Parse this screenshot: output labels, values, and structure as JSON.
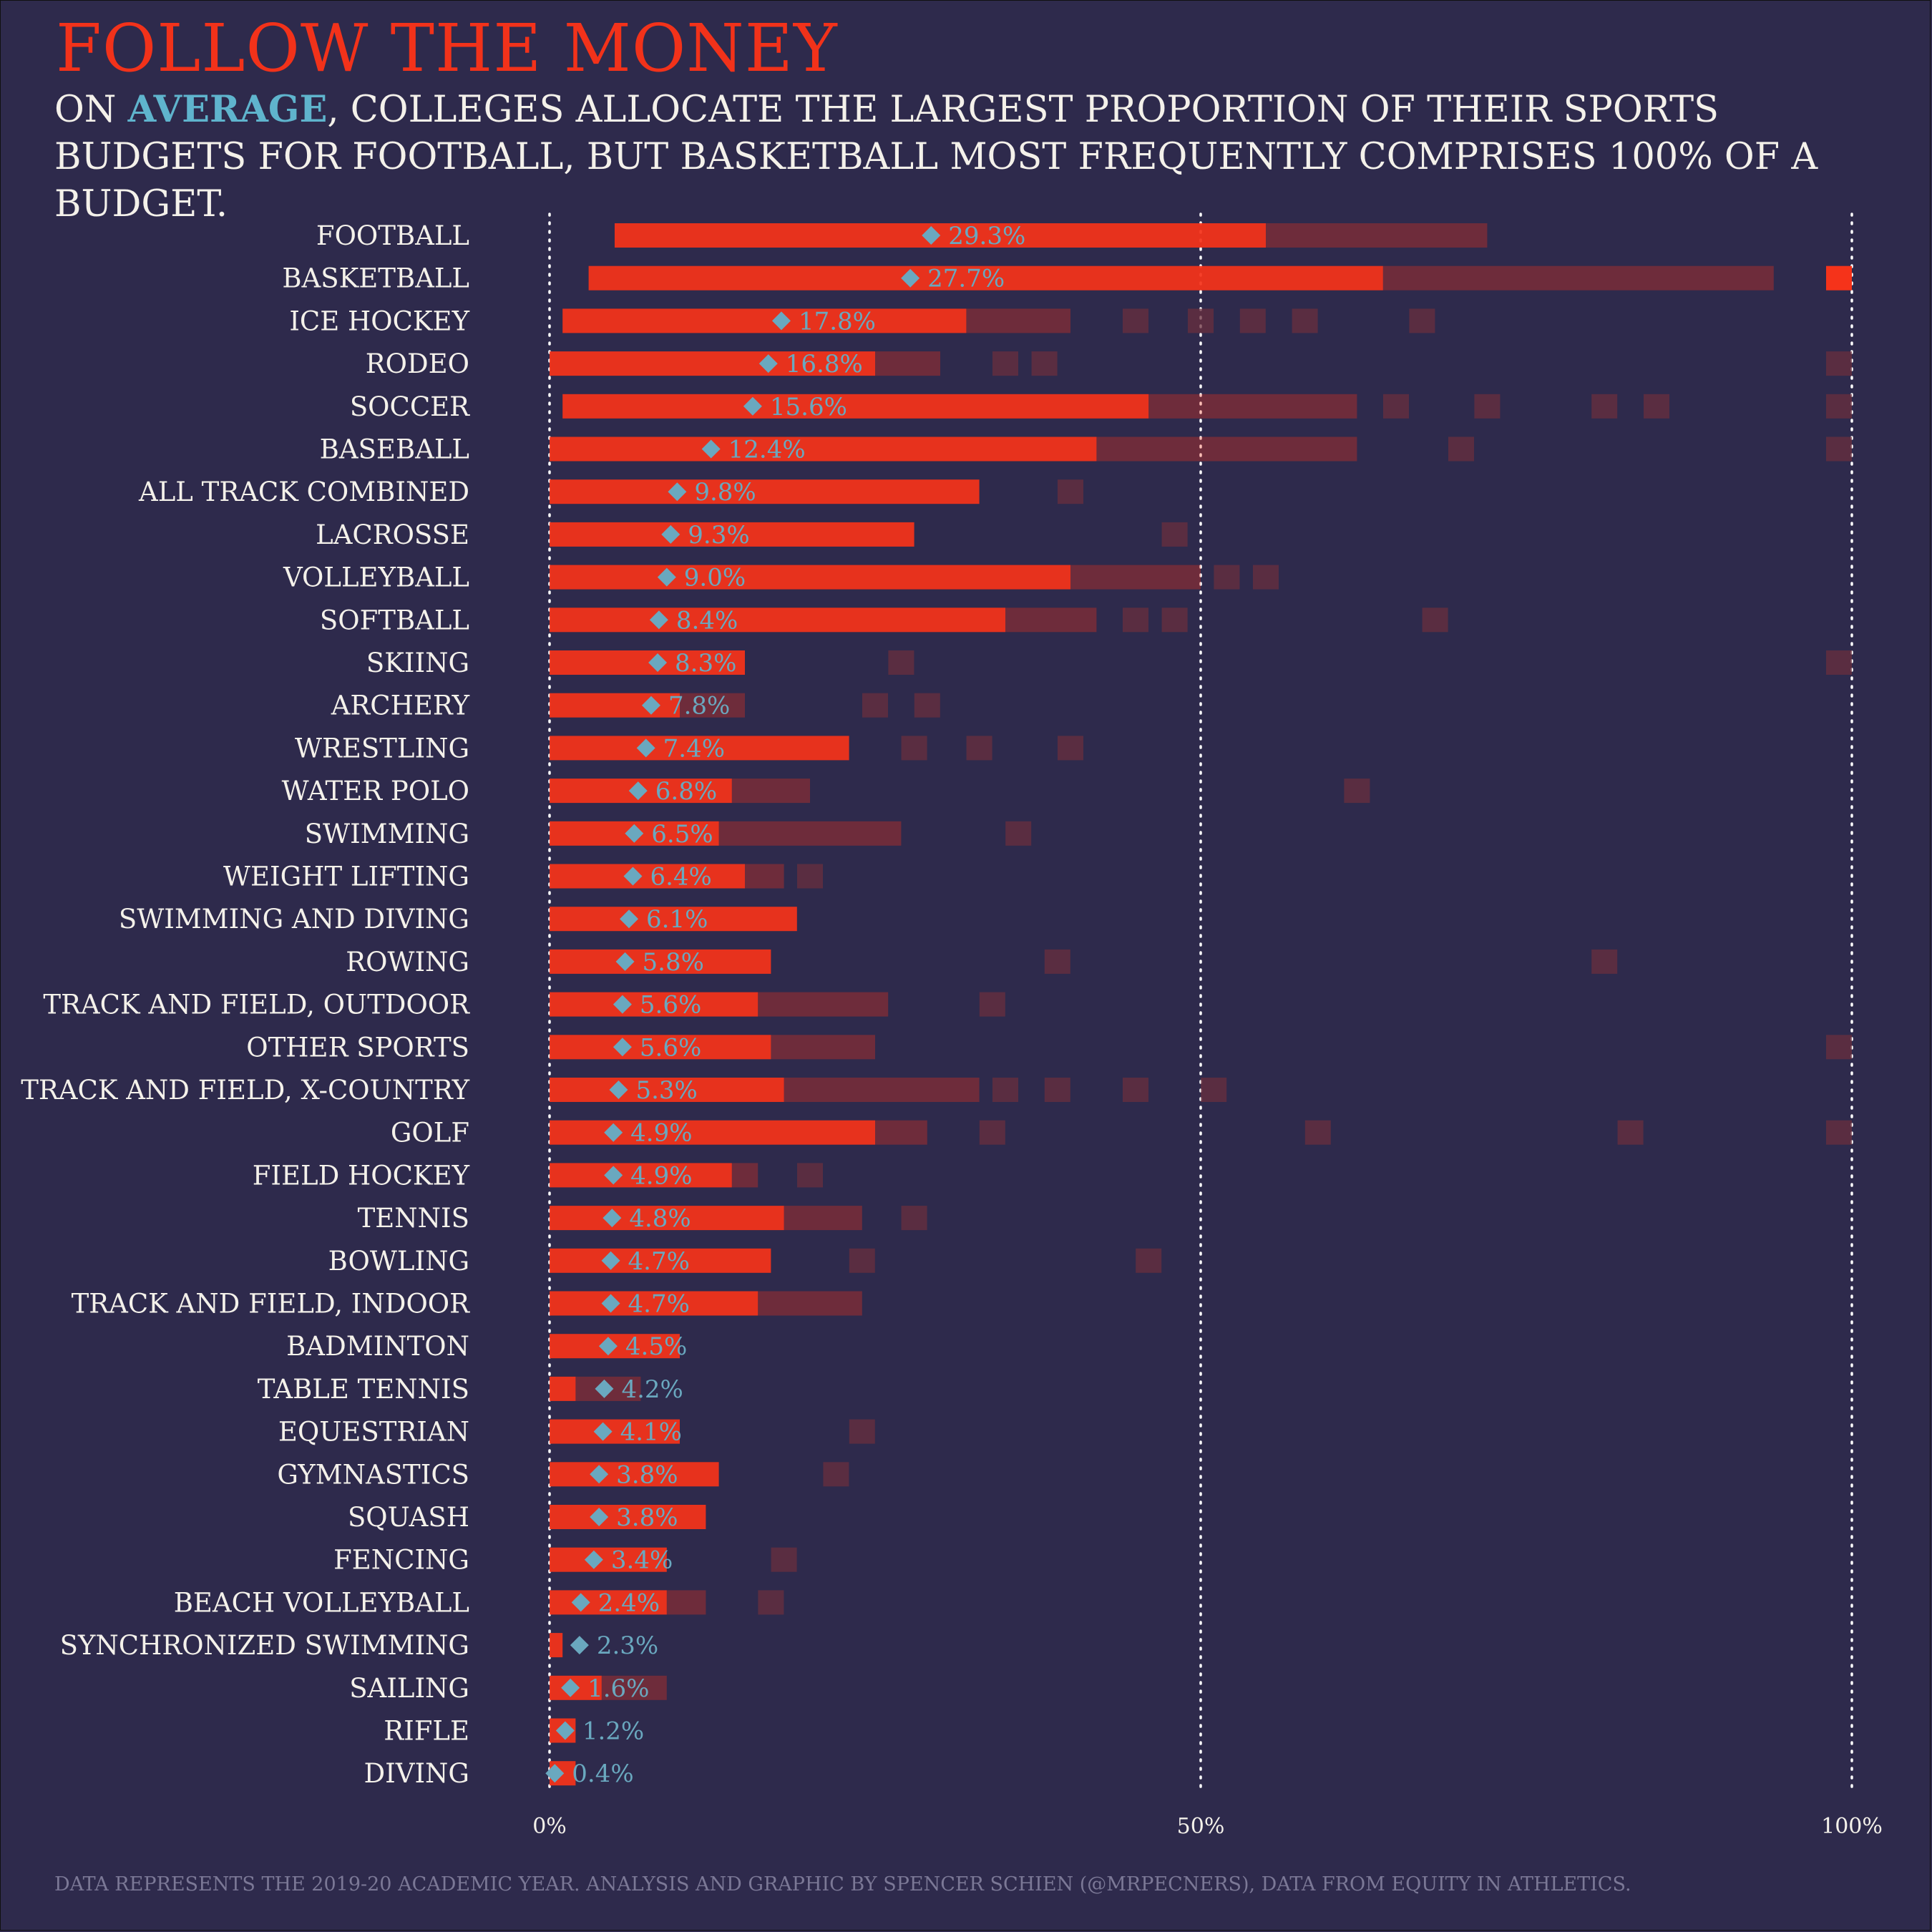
{
  "title": "Follow the Money",
  "subtitle": {
    "prefix": "On ",
    "highlight": "average",
    "rest": ", colleges allocate the largest proportion of their sports budgets for football, but basketball most frequently comprises 100% of a budget."
  },
  "footer": "Data represents the 2019-20 academic year. Analysis and graphic by Spencer Schien (@MrPecners), data from Equity in Athletics.",
  "colors": {
    "background": "#2e2a4c",
    "title": "#f2321a",
    "bar": "#f5331a",
    "faint_bar": "#6a2f3e",
    "average_marker": "#6aa8bf",
    "highlight": "#5fb4cd",
    "text": "#f4f1ea",
    "gridline": "#ffffff"
  },
  "chart_data": {
    "type": "bar",
    "encoding": "per-sport strip of individual college budget shares (red), with the average share shown as a diamond marker",
    "x_axis": {
      "ticks": [
        "0%",
        "50%",
        "100%"
      ],
      "range": [
        0,
        100
      ],
      "unit": "% of sports budget",
      "gridlines": [
        0,
        50,
        100
      ],
      "gridline_style": "dotted"
    },
    "categories": [
      "Football",
      "Basketball",
      "Ice Hockey",
      "Rodeo",
      "Soccer",
      "Baseball",
      "All Track Combined",
      "Lacrosse",
      "Volleyball",
      "Softball",
      "Skiing",
      "Archery",
      "Wrestling",
      "Water Polo",
      "Swimming",
      "Weight Lifting",
      "Swimming and Diving",
      "Rowing",
      "Track and Field, Outdoor",
      "Other Sports",
      "Track and Field, X-Country",
      "Golf",
      "Field Hockey",
      "Tennis",
      "Bowling",
      "Track and Field, Indoor",
      "Badminton",
      "Table Tennis",
      "Equestrian",
      "Gymnastics",
      "Squash",
      "Fencing",
      "Beach Volleyball",
      "Synchronized Swimming",
      "Sailing",
      "Rifle",
      "Diving"
    ],
    "average_values": [
      29.3,
      27.7,
      17.8,
      16.8,
      15.6,
      12.4,
      9.8,
      9.3,
      9.0,
      8.4,
      8.3,
      7.8,
      7.4,
      6.8,
      6.5,
      6.4,
      6.1,
      5.8,
      5.6,
      5.6,
      5.3,
      4.9,
      4.9,
      4.8,
      4.7,
      4.7,
      4.5,
      4.2,
      4.1,
      3.8,
      3.8,
      3.4,
      2.4,
      2.3,
      1.6,
      1.2,
      0.4
    ],
    "average_labels": [
      "29.3%",
      "27.7%",
      "17.8%",
      "16.8%",
      "15.6%",
      "12.4%",
      "9.8%",
      "9.3%",
      "9.0%",
      "8.4%",
      "8.3%",
      "7.8%",
      "7.4%",
      "6.8%",
      "6.5%",
      "6.4%",
      "6.1%",
      "5.8%",
      "5.6%",
      "5.6%",
      "5.3%",
      "4.9%",
      "4.9%",
      "4.8%",
      "4.7%",
      "4.7%",
      "4.5%",
      "4.2%",
      "4.1%",
      "3.8%",
      "3.8%",
      "3.4%",
      "2.4%",
      "2.3%",
      "1.6%",
      "1.2%",
      "0.4%"
    ],
    "distribution": [
      {
        "dense_range": [
          5,
          55
        ],
        "sparse_range": [
          55,
          72
        ],
        "outliers": []
      },
      {
        "dense_range": [
          3,
          64
        ],
        "sparse_range": [
          64,
          94
        ],
        "outliers": [
          100
        ]
      },
      {
        "dense_range": [
          1,
          32
        ],
        "sparse_range": [
          32,
          40
        ],
        "outliers": [
          45,
          50,
          54,
          58,
          67
        ]
      },
      {
        "dense_range": [
          0,
          25
        ],
        "sparse_range": [
          25,
          30
        ],
        "outliers": [
          35,
          38,
          100
        ]
      },
      {
        "dense_range": [
          1,
          46
        ],
        "sparse_range": [
          46,
          62
        ],
        "outliers": [
          65,
          72,
          81,
          85,
          100
        ]
      },
      {
        "dense_range": [
          0,
          42
        ],
        "sparse_range": [
          42,
          62
        ],
        "outliers": [
          70,
          100
        ]
      },
      {
        "dense_range": [
          0,
          33
        ],
        "sparse_range": [
          33,
          33
        ],
        "outliers": [
          40
        ]
      },
      {
        "dense_range": [
          0,
          28
        ],
        "sparse_range": [
          28,
          28
        ],
        "outliers": [
          48
        ]
      },
      {
        "dense_range": [
          0,
          40
        ],
        "sparse_range": [
          40,
          50
        ],
        "outliers": [
          52,
          55
        ]
      },
      {
        "dense_range": [
          0,
          35
        ],
        "sparse_range": [
          35,
          42
        ],
        "outliers": [
          45,
          48,
          68
        ]
      },
      {
        "dense_range": [
          0,
          15
        ],
        "sparse_range": [
          15,
          15
        ],
        "outliers": [
          27,
          100
        ]
      },
      {
        "dense_range": [
          0,
          10
        ],
        "sparse_range": [
          10,
          15
        ],
        "outliers": [
          25,
          29
        ]
      },
      {
        "dense_range": [
          0,
          23
        ],
        "sparse_range": [
          23,
          23
        ],
        "outliers": [
          28,
          33,
          40
        ]
      },
      {
        "dense_range": [
          0,
          14
        ],
        "sparse_range": [
          14,
          20
        ],
        "outliers": [
          62
        ]
      },
      {
        "dense_range": [
          0,
          13
        ],
        "sparse_range": [
          13,
          27
        ],
        "outliers": [
          36
        ]
      },
      {
        "dense_range": [
          0,
          15
        ],
        "sparse_range": [
          15,
          18
        ],
        "outliers": [
          20
        ]
      },
      {
        "dense_range": [
          0,
          19
        ],
        "sparse_range": [
          19,
          19
        ],
        "outliers": []
      },
      {
        "dense_range": [
          0,
          17
        ],
        "sparse_range": [
          17,
          17
        ],
        "outliers": [
          39,
          81
        ]
      },
      {
        "dense_range": [
          0,
          16
        ],
        "sparse_range": [
          16,
          26
        ],
        "outliers": [
          34
        ]
      },
      {
        "dense_range": [
          0,
          17
        ],
        "sparse_range": [
          17,
          25
        ],
        "outliers": [
          100
        ]
      },
      {
        "dense_range": [
          0,
          18
        ],
        "sparse_range": [
          18,
          33
        ],
        "outliers": [
          35,
          39,
          45,
          51
        ]
      },
      {
        "dense_range": [
          0,
          25
        ],
        "sparse_range": [
          25,
          29
        ],
        "outliers": [
          34,
          59,
          83,
          100
        ]
      },
      {
        "dense_range": [
          0,
          14
        ],
        "sparse_range": [
          14,
          16
        ],
        "outliers": [
          20
        ]
      },
      {
        "dense_range": [
          0,
          18
        ],
        "sparse_range": [
          18,
          24
        ],
        "outliers": [
          28
        ]
      },
      {
        "dense_range": [
          0,
          17
        ],
        "sparse_range": [
          17,
          17
        ],
        "outliers": [
          24,
          46
        ]
      },
      {
        "dense_range": [
          0,
          16
        ],
        "sparse_range": [
          16,
          24
        ],
        "outliers": []
      },
      {
        "dense_range": [
          0,
          10
        ],
        "sparse_range": [
          10,
          10
        ],
        "outliers": []
      },
      {
        "dense_range": [
          0,
          2
        ],
        "sparse_range": [
          2,
          7
        ],
        "outliers": []
      },
      {
        "dense_range": [
          0,
          10
        ],
        "sparse_range": [
          10,
          10
        ],
        "outliers": [
          24
        ]
      },
      {
        "dense_range": [
          0,
          13
        ],
        "sparse_range": [
          13,
          13
        ],
        "outliers": [
          22
        ]
      },
      {
        "dense_range": [
          0,
          12
        ],
        "sparse_range": [
          12,
          12
        ],
        "outliers": []
      },
      {
        "dense_range": [
          0,
          9
        ],
        "sparse_range": [
          9,
          9
        ],
        "outliers": [
          18
        ]
      },
      {
        "dense_range": [
          0,
          9
        ],
        "sparse_range": [
          9,
          12
        ],
        "outliers": [
          17
        ]
      },
      {
        "dense_range": [
          0,
          1
        ],
        "sparse_range": [
          1,
          1
        ],
        "outliers": []
      },
      {
        "dense_range": [
          0,
          4
        ],
        "sparse_range": [
          4,
          9
        ],
        "outliers": []
      },
      {
        "dense_range": [
          0,
          2
        ],
        "sparse_range": [
          2,
          2
        ],
        "outliers": []
      },
      {
        "dense_range": [
          0,
          2
        ],
        "sparse_range": [
          2,
          2
        ],
        "outliers": []
      }
    ]
  }
}
